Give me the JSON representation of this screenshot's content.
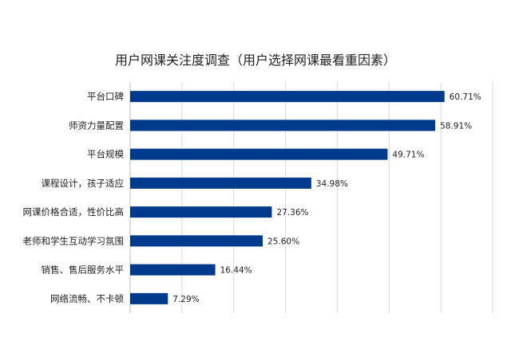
{
  "chart_data": {
    "type": "bar",
    "orientation": "horizontal",
    "title": "用户网课关注度调查（用户选择网课最看重因素）",
    "categories": [
      "平台口碑",
      "师资力量配置",
      "平台规模",
      "课程设计，孩子适应",
      "网课价格合适，性价比高",
      "老师和学生互动学习氛围",
      "销售、售后服务水平",
      "网络流畅、不卡顿"
    ],
    "values": [
      60.71,
      58.91,
      49.71,
      34.98,
      27.36,
      25.6,
      16.44,
      7.29
    ],
    "value_labels": [
      "60.71%",
      "58.91%",
      "49.71%",
      "34.98%",
      "27.36%",
      "25.60%",
      "16.44%",
      "7.29%"
    ],
    "xlim": [
      0,
      70
    ],
    "x_grid_step": 10,
    "grid": true,
    "bar_color": "#003a8c"
  }
}
